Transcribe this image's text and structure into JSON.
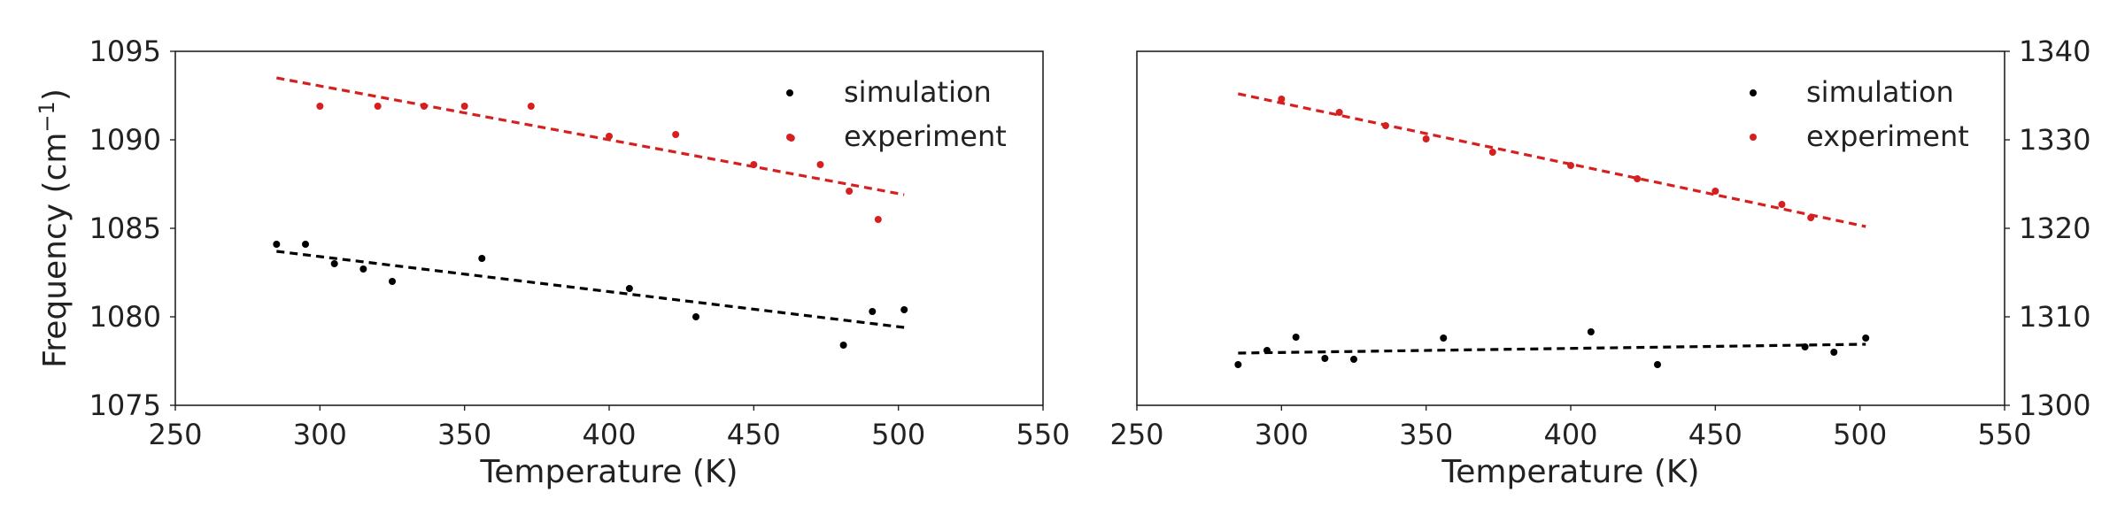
{
  "chart_data": [
    {
      "type": "scatter",
      "xlabel": "Temperature (K)",
      "ylabel_main": "Frequency (cm",
      "ylabel_sup": "−1",
      "ylabel_close": ")",
      "xlim": [
        250,
        550
      ],
      "ylim": [
        1075,
        1095
      ],
      "xticks": [
        "250",
        "300",
        "350",
        "400",
        "450",
        "500",
        "550"
      ],
      "yticks": [
        "1075",
        "1080",
        "1085",
        "1090",
        "1095"
      ],
      "y_axis_side": "left",
      "grid": false,
      "legend_position": "top-right",
      "series": [
        {
          "name": "simulation",
          "color": "#000000",
          "x": [
            285,
            295,
            305,
            315,
            325,
            356,
            407,
            430,
            481,
            491,
            502
          ],
          "y": [
            1084.1,
            1084.1,
            1083.0,
            1082.7,
            1082.0,
            1083.3,
            1081.6,
            1080.0,
            1078.4,
            1080.3,
            1080.4
          ],
          "fit": {
            "x": [
              285,
              502
            ],
            "y": [
              1083.7,
              1079.4
            ]
          }
        },
        {
          "name": "experiment",
          "color": "#d62020",
          "x": [
            300,
            320,
            336,
            350,
            373,
            400,
            423,
            450,
            463,
            473,
            483,
            493
          ],
          "y": [
            1091.9,
            1091.9,
            1091.9,
            1091.9,
            1091.9,
            1090.2,
            1090.3,
            1088.6,
            1090.1,
            1088.6,
            1087.1,
            1085.5
          ],
          "fit": {
            "x": [
              285,
              502
            ],
            "y": [
              1093.5,
              1086.9
            ]
          }
        }
      ]
    },
    {
      "type": "scatter",
      "xlabel": "Temperature (K)",
      "xlim": [
        250,
        550
      ],
      "ylim": [
        1300,
        1340
      ],
      "xticks": [
        "250",
        "300",
        "350",
        "400",
        "450",
        "500",
        "550"
      ],
      "yticks": [
        "1300",
        "1310",
        "1320",
        "1330",
        "1340"
      ],
      "y_axis_side": "right",
      "grid": false,
      "legend_position": "top-right",
      "series": [
        {
          "name": "simulation",
          "color": "#000000",
          "x": [
            285,
            295,
            305,
            315,
            325,
            356,
            407,
            430,
            481,
            491,
            502
          ],
          "y": [
            1304.6,
            1306.2,
            1307.7,
            1305.3,
            1305.2,
            1307.6,
            1308.3,
            1304.6,
            1306.6,
            1306.0,
            1307.6
          ],
          "fit": {
            "x": [
              285,
              502
            ],
            "y": [
              1305.9,
              1306.9
            ]
          }
        },
        {
          "name": "experiment",
          "color": "#d62020",
          "x": [
            300,
            320,
            336,
            350,
            373,
            400,
            423,
            450,
            473,
            483
          ],
          "y": [
            1334.6,
            1333.1,
            1331.6,
            1330.1,
            1328.6,
            1327.1,
            1325.6,
            1324.2,
            1322.7,
            1321.2
          ],
          "fit": {
            "x": [
              285,
              502
            ],
            "y": [
              1335.2,
              1320.2
            ]
          }
        }
      ]
    }
  ]
}
